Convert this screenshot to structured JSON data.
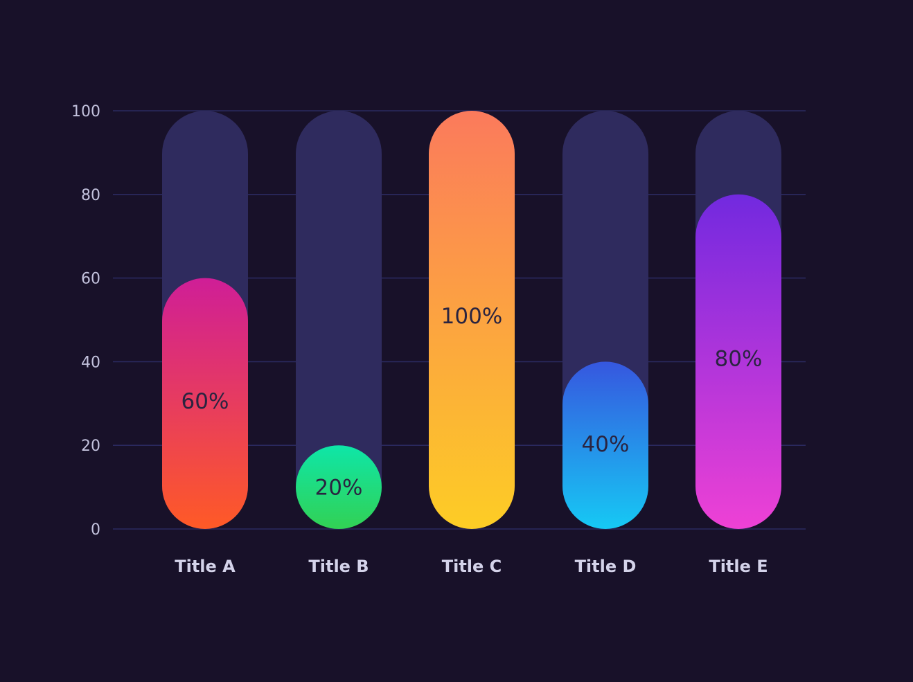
{
  "chart_data": {
    "type": "bar",
    "categories": [
      "Title A",
      "Title B",
      "Title C",
      "Title D",
      "Title E"
    ],
    "values": [
      60,
      20,
      100,
      40,
      80
    ],
    "value_labels": [
      "60%",
      "20%",
      "100%",
      "40%",
      "80%"
    ],
    "y_ticks": [
      "0",
      "20",
      "40",
      "60",
      "80",
      "100"
    ],
    "ylim": [
      0,
      100
    ],
    "grid": true,
    "colors": {
      "background": "#181129",
      "track": "#2f2b5e",
      "gridline": "#2b2a60",
      "tick_label": "#c3c2dd",
      "category_label": "#d4d3ea",
      "value_label": "#2a2440"
    },
    "bar_gradients": [
      {
        "top": "#cf1e97",
        "bottom": "#ff5a26"
      },
      {
        "top": "#0ee6a8",
        "bottom": "#32d154"
      },
      {
        "top": "#fb7a5c",
        "bottom": "#fdcd25"
      },
      {
        "top": "#3657df",
        "bottom": "#16c9f4"
      },
      {
        "top": "#7229df",
        "bottom": "#ee41d5"
      }
    ]
  }
}
